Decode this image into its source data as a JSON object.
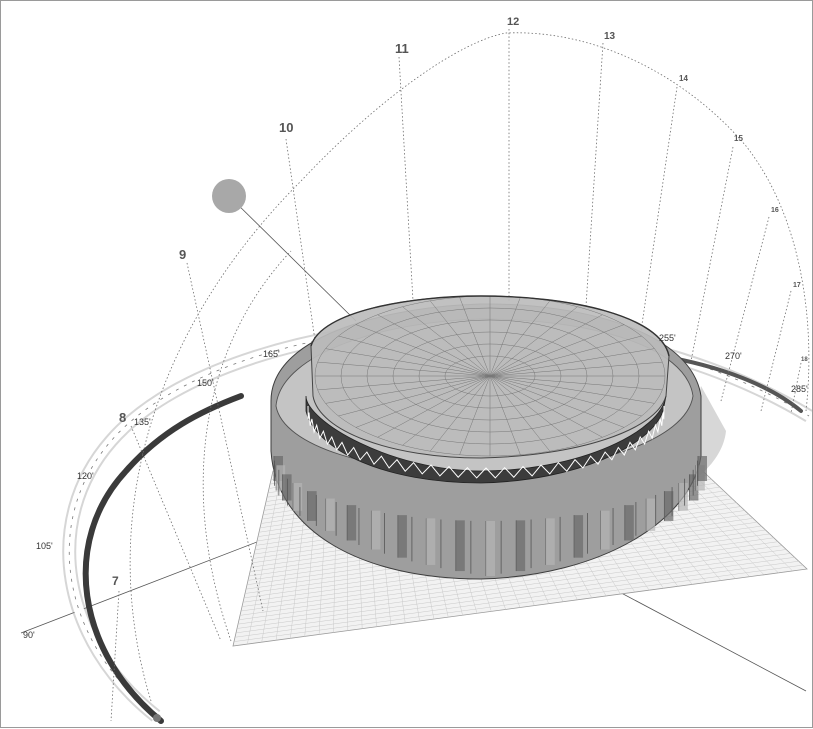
{
  "scene": {
    "title": "",
    "hour_labels": [
      "7",
      "8",
      "9",
      "10",
      "11",
      "12",
      "13",
      "14",
      "15",
      "16",
      "17",
      "18"
    ],
    "azimuth_labels": [
      "90'",
      "105'",
      "120'",
      "135'",
      "150'",
      "165'",
      "255'",
      "270'",
      "285'"
    ],
    "colors": {
      "background": "#ffffff",
      "sun": "#a8a8a8",
      "building_outer": "#9c9c9c",
      "building_dark": "#4a4a4a",
      "ground_grid": "#bdbdbd",
      "shadow": "#d8d8d8",
      "rail": "#3a3a3a"
    },
    "icons": {
      "sun": "sun-icon"
    }
  }
}
